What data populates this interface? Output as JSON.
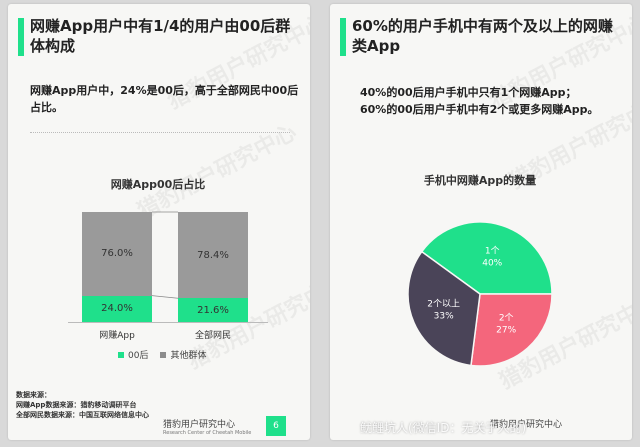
{
  "left": {
    "title": "网赚App用户中有1/4的用户由00后群体构成",
    "desc": "网赚App用户中，24%是00后，高于全部网民中00后占比。",
    "source_label": "数据来源：",
    "source_line1": "网赚App数据来源：猎豹移动调研平台",
    "source_line2": "全部网民数据来源：中国互联网络信息中心",
    "brand": "猎豹用户研究中心",
    "brand_en": "Research Center of Cheetah Mobile",
    "page": "6"
  },
  "right": {
    "title": "60%的用户手机中有两个及以上的网赚类App",
    "desc_line1": "40%的00后用户手机中只有1个网赚App；",
    "desc_line2": "60%的00后用户手机中有2个或更多网赚App。",
    "brand": "猎豹用户研究中心"
  },
  "watermark": "猎豹用户研究中心",
  "overlay_text": "鱿鲤坑人(微信ID：无关于人的)",
  "colors": {
    "accent": "#1fe08b",
    "gray": "#8c8c8c",
    "pink": "#f4667c",
    "dark": "#4a4458"
  },
  "chart_data": [
    {
      "type": "bar",
      "stacked": true,
      "title": "网赚App00后占比",
      "categories": [
        "网赚App",
        "全部网民"
      ],
      "series": [
        {
          "name": "00后",
          "values": [
            24.0,
            21.6
          ],
          "labels": [
            "24.0%",
            "21.6%"
          ],
          "color": "#1fe08b"
        },
        {
          "name": "其他群体",
          "values": [
            76.0,
            78.4
          ],
          "labels": [
            "76.0%",
            "78.4%"
          ],
          "color": "#8c8c8c"
        }
      ],
      "ylim": [
        0,
        100
      ],
      "legend": "bottom"
    },
    {
      "type": "pie",
      "title": "手机中网赚App的数量",
      "slices": [
        {
          "label": "1个",
          "value": 40,
          "pct": "40%",
          "color": "#1fe08b"
        },
        {
          "label": "2个",
          "value": 27,
          "pct": "27%",
          "color": "#f4667c"
        },
        {
          "label": "2个以上",
          "value": 33,
          "pct": "33%",
          "color": "#4a4458"
        }
      ]
    }
  ]
}
